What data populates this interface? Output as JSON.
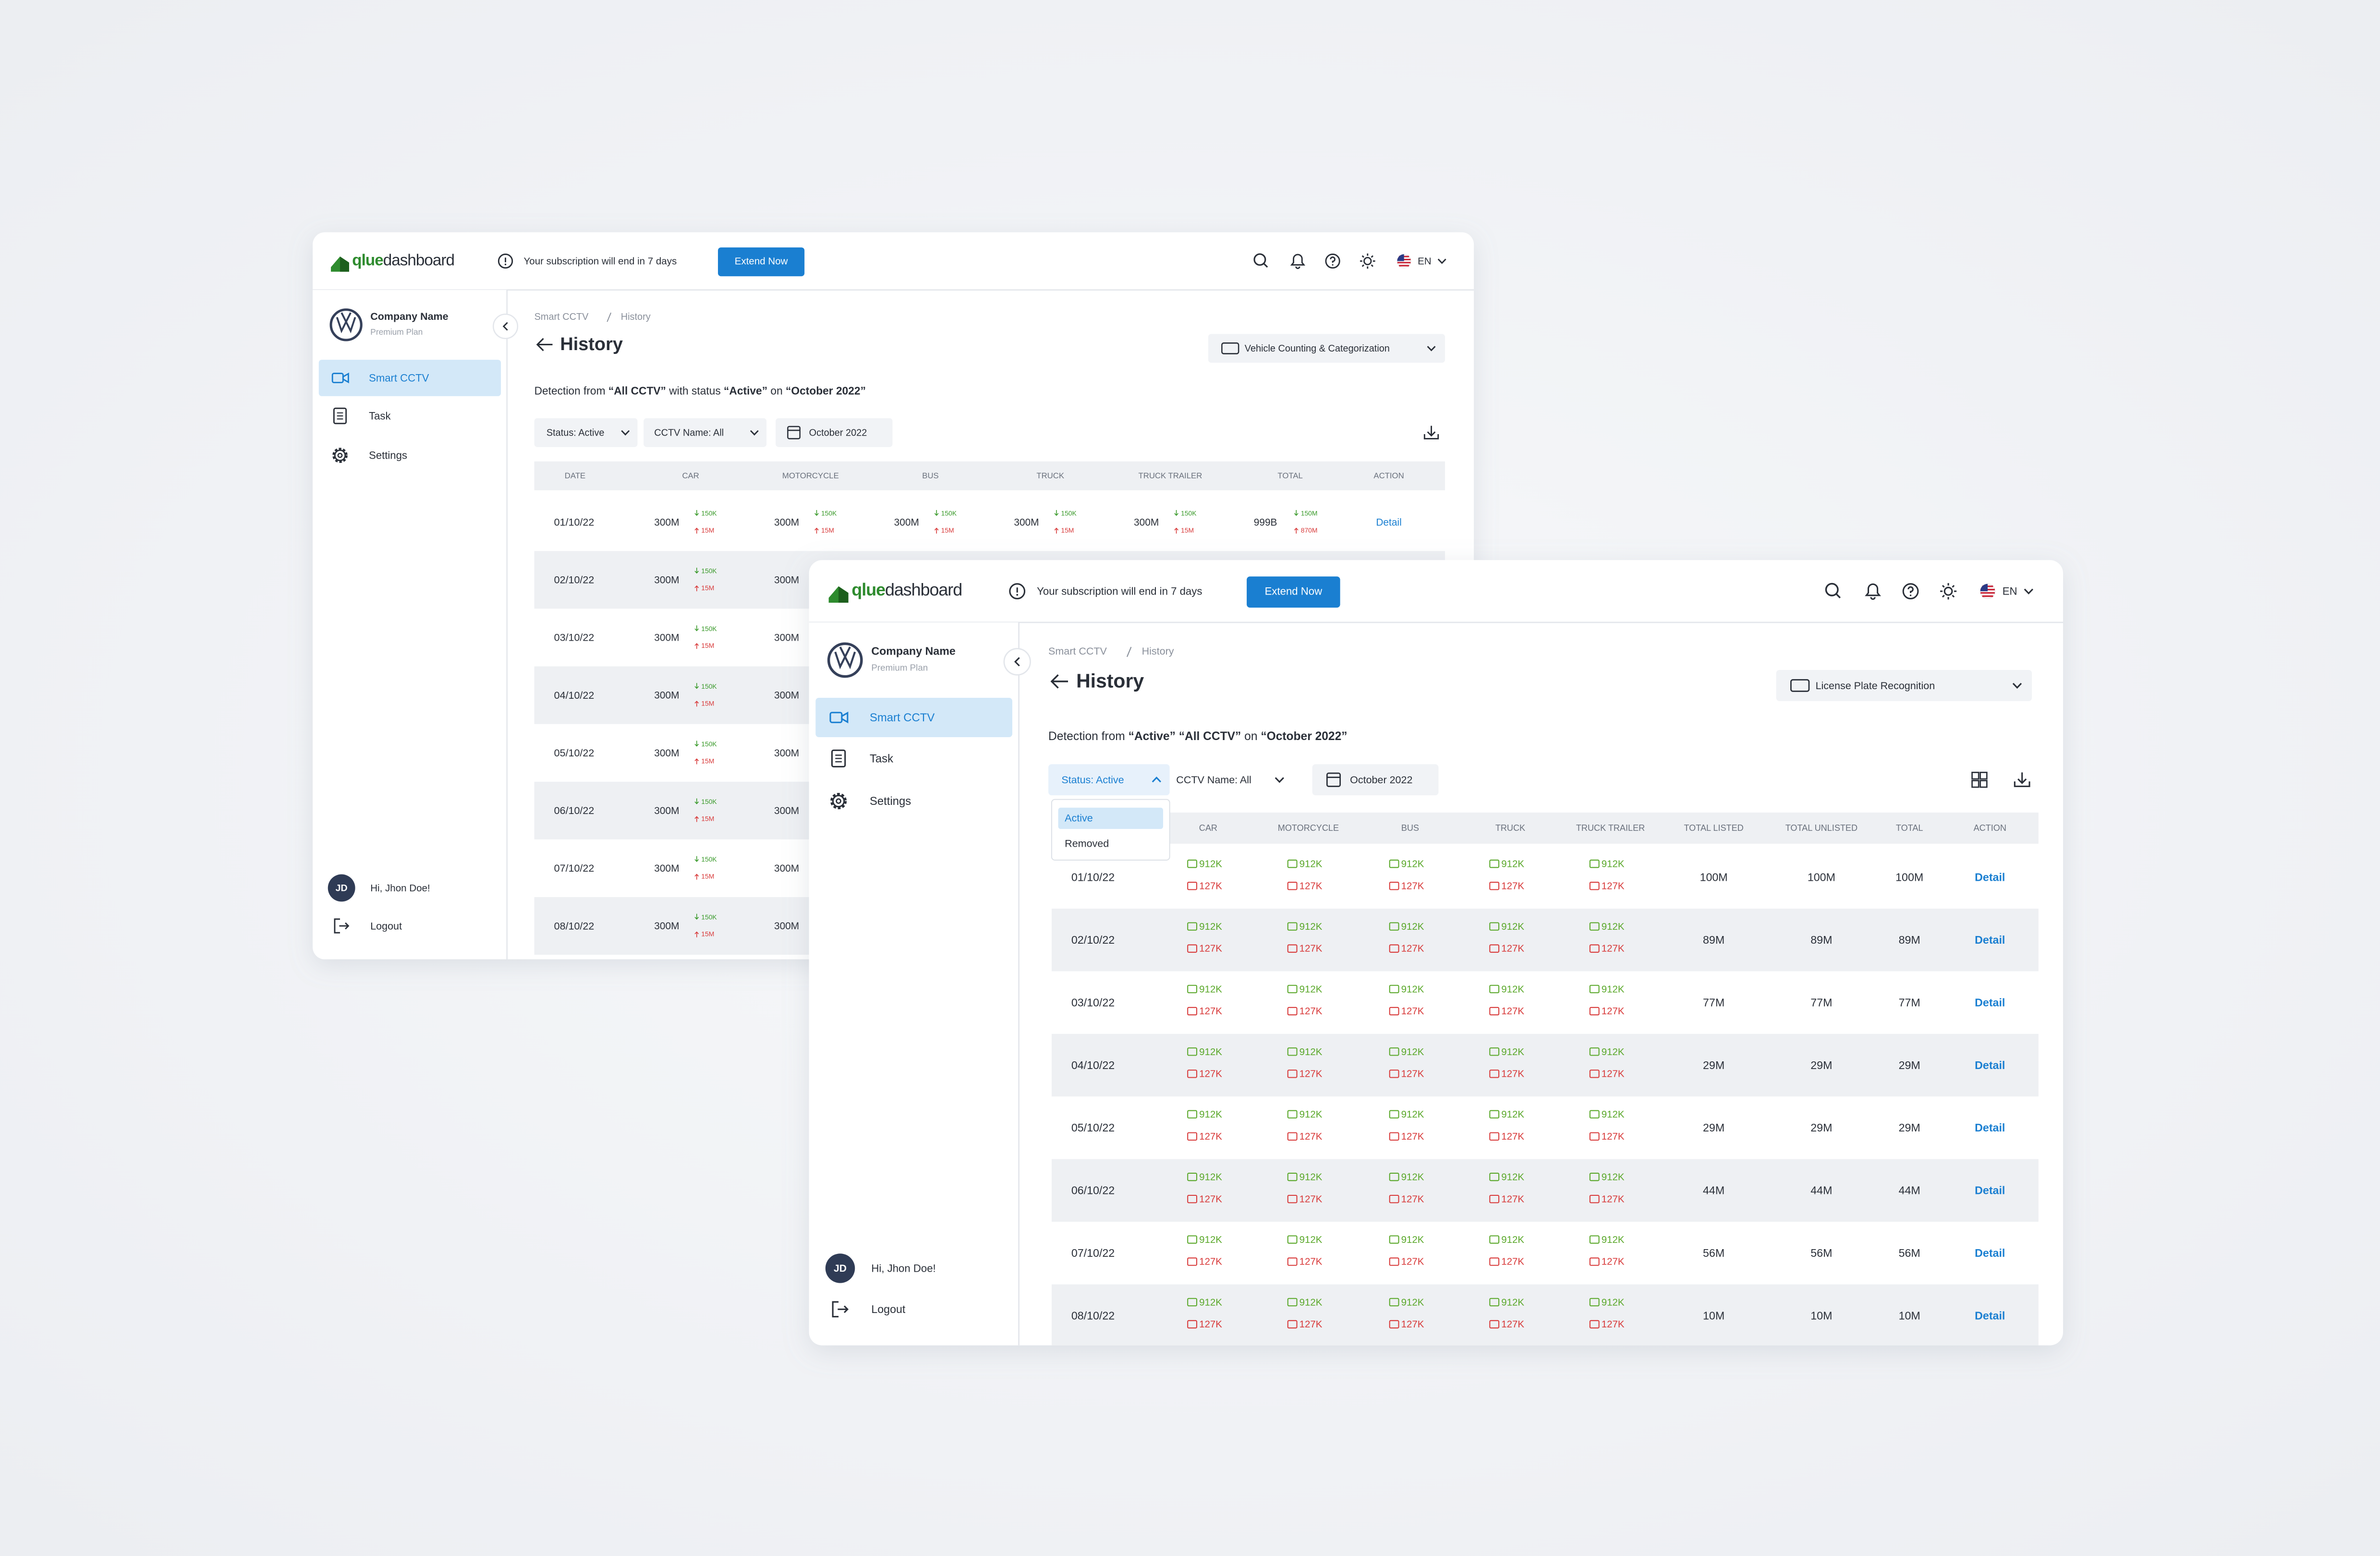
{
  "back": {
    "logo": [
      "qlue",
      "dashboard"
    ],
    "notice": "Your subscription  will end in 7 days",
    "extend": "Extend Now",
    "language": "EN",
    "company": {
      "name": "Company Name",
      "plan": "Premium Plan"
    },
    "nav": [
      "Smart CCTV",
      "Task",
      "Settings"
    ],
    "user": {
      "initials": "JD",
      "greeting": "Hi, Jhon Doe!"
    },
    "logout": "Logout",
    "breadcrumb": [
      "Smart CCTV",
      "History"
    ],
    "title": "History",
    "feature": "Vehicle Counting & Categorization",
    "detection": [
      "Detection from ",
      "“All CCTV”",
      " with status ",
      "“Active”",
      " on ",
      "“October 2022”"
    ],
    "filters": {
      "status": "Status: Active",
      "cctv": "CCTV Name: All",
      "date": "October 2022"
    },
    "table": {
      "columns": [
        "DATE",
        "CAR",
        "MOTORCYCLE",
        "BUS",
        "TRUCK",
        "TRUCK TRAILER",
        "TOTAL",
        "ACTION"
      ],
      "rows": [
        {
          "date": "01/10/22",
          "cells": [
            {
              "value": "300M",
              "down": "150K",
              "up": "15M"
            },
            {
              "value": "300M",
              "down": "150K",
              "up": "15M"
            },
            {
              "value": "300M",
              "down": "150K",
              "up": "15M"
            },
            {
              "value": "300M",
              "down": "150K",
              "up": "15M"
            },
            {
              "value": "300M",
              "down": "150K",
              "up": "15M"
            },
            {
              "value": "999B",
              "down": "150M",
              "up": "870M"
            }
          ],
          "action": "Detail"
        },
        {
          "date": "02/10/22",
          "cells": [
            {
              "value": "300M",
              "down": "150K",
              "up": "15M"
            },
            {
              "value": "300M"
            }
          ]
        },
        {
          "date": "03/10/22",
          "cells": [
            {
              "value": "300M",
              "down": "150K",
              "up": "15M"
            },
            {
              "value": "300M"
            }
          ]
        },
        {
          "date": "04/10/22",
          "cells": [
            {
              "value": "300M",
              "down": "150K",
              "up": "15M"
            },
            {
              "value": "300M"
            }
          ]
        },
        {
          "date": "05/10/22",
          "cells": [
            {
              "value": "300M",
              "down": "150K",
              "up": "15M"
            },
            {
              "value": "300M"
            }
          ]
        },
        {
          "date": "06/10/22",
          "cells": [
            {
              "value": "300M",
              "down": "150K",
              "up": "15M"
            },
            {
              "value": "300M"
            }
          ]
        },
        {
          "date": "07/10/22",
          "cells": [
            {
              "value": "300M",
              "down": "150K",
              "up": "15M"
            },
            {
              "value": "300M"
            }
          ]
        },
        {
          "date": "08/10/22",
          "cells": [
            {
              "value": "300M",
              "down": "150K",
              "up": "15M"
            },
            {
              "value": "300M"
            }
          ]
        }
      ]
    }
  },
  "front": {
    "logo": [
      "qlue",
      "dashboard"
    ],
    "notice": "Your subscription  will end in 7 days",
    "extend": "Extend Now",
    "language": "EN",
    "company": {
      "name": "Company Name",
      "plan": "Premium Plan"
    },
    "nav": [
      "Smart CCTV",
      "Task",
      "Settings"
    ],
    "user": {
      "initials": "JD",
      "greeting": "Hi, Jhon Doe!"
    },
    "logout": "Logout",
    "breadcrumb": [
      "Smart CCTV",
      "History"
    ],
    "title": "History",
    "feature": "License Plate Recognition",
    "detection": [
      "Detection from ",
      "“Active” “All CCTV”",
      " on ",
      "“October 2022”"
    ],
    "filters": {
      "status": "Status: Active",
      "cctv": "CCTV Name: All",
      "date": "October 2022"
    },
    "status_options": [
      "Active",
      "Removed"
    ],
    "table": {
      "columns": [
        "CAR",
        "MOTORCYCLE",
        "BUS",
        "TRUCK",
        "TRUCK TRAILER",
        "TOTAL LISTED",
        "TOTAL UNLISTED",
        "TOTAL",
        "ACTION"
      ],
      "rows": [
        {
          "date": "01/10/22",
          "cells": [
            {
              "listed": "912K",
              "unlisted": "127K"
            },
            {
              "listed": "912K",
              "unlisted": "127K"
            },
            {
              "listed": "912K",
              "unlisted": "127K"
            },
            {
              "listed": "912K",
              "unlisted": "127K"
            },
            {
              "listed": "912K",
              "unlisted": "127K"
            }
          ],
          "totals": [
            "100M",
            "100M",
            "100M"
          ],
          "action": "Detail"
        },
        {
          "date": "02/10/22",
          "cells": [
            {
              "listed": "912K",
              "unlisted": "127K"
            },
            {
              "listed": "912K",
              "unlisted": "127K"
            },
            {
              "listed": "912K",
              "unlisted": "127K"
            },
            {
              "listed": "912K",
              "unlisted": "127K"
            },
            {
              "listed": "912K",
              "unlisted": "127K"
            }
          ],
          "totals": [
            "89M",
            "89M",
            "89M"
          ],
          "action": "Detail"
        },
        {
          "date": "03/10/22",
          "cells": [
            {
              "listed": "912K",
              "unlisted": "127K"
            },
            {
              "listed": "912K",
              "unlisted": "127K"
            },
            {
              "listed": "912K",
              "unlisted": "127K"
            },
            {
              "listed": "912K",
              "unlisted": "127K"
            },
            {
              "listed": "912K",
              "unlisted": "127K"
            }
          ],
          "totals": [
            "77M",
            "77M",
            "77M"
          ],
          "action": "Detail"
        },
        {
          "date": "04/10/22",
          "cells": [
            {
              "listed": "912K",
              "unlisted": "127K"
            },
            {
              "listed": "912K",
              "unlisted": "127K"
            },
            {
              "listed": "912K",
              "unlisted": "127K"
            },
            {
              "listed": "912K",
              "unlisted": "127K"
            },
            {
              "listed": "912K",
              "unlisted": "127K"
            }
          ],
          "totals": [
            "29M",
            "29M",
            "29M"
          ],
          "action": "Detail"
        },
        {
          "date": "05/10/22",
          "cells": [
            {
              "listed": "912K",
              "unlisted": "127K"
            },
            {
              "listed": "912K",
              "unlisted": "127K"
            },
            {
              "listed": "912K",
              "unlisted": "127K"
            },
            {
              "listed": "912K",
              "unlisted": "127K"
            },
            {
              "listed": "912K",
              "unlisted": "127K"
            }
          ],
          "totals": [
            "29M",
            "29M",
            "29M"
          ],
          "action": "Detail"
        },
        {
          "date": "06/10/22",
          "cells": [
            {
              "listed": "912K",
              "unlisted": "127K"
            },
            {
              "listed": "912K",
              "unlisted": "127K"
            },
            {
              "listed": "912K",
              "unlisted": "127K"
            },
            {
              "listed": "912K",
              "unlisted": "127K"
            },
            {
              "listed": "912K",
              "unlisted": "127K"
            }
          ],
          "totals": [
            "44M",
            "44M",
            "44M"
          ],
          "action": "Detail"
        },
        {
          "date": "07/10/22",
          "cells": [
            {
              "listed": "912K",
              "unlisted": "127K"
            },
            {
              "listed": "912K",
              "unlisted": "127K"
            },
            {
              "listed": "912K",
              "unlisted": "127K"
            },
            {
              "listed": "912K",
              "unlisted": "127K"
            },
            {
              "listed": "912K",
              "unlisted": "127K"
            }
          ],
          "totals": [
            "56M",
            "56M",
            "56M"
          ],
          "action": "Detail"
        },
        {
          "date": "08/10/22",
          "cells": [
            {
              "listed": "912K",
              "unlisted": "127K"
            },
            {
              "listed": "912K",
              "unlisted": "127K"
            },
            {
              "listed": "912K",
              "unlisted": "127K"
            },
            {
              "listed": "912K",
              "unlisted": "127K"
            },
            {
              "listed": "912K",
              "unlisted": "127K"
            }
          ],
          "totals": [
            "10M",
            "10M",
            "10M"
          ],
          "action": "Detail"
        }
      ]
    }
  }
}
